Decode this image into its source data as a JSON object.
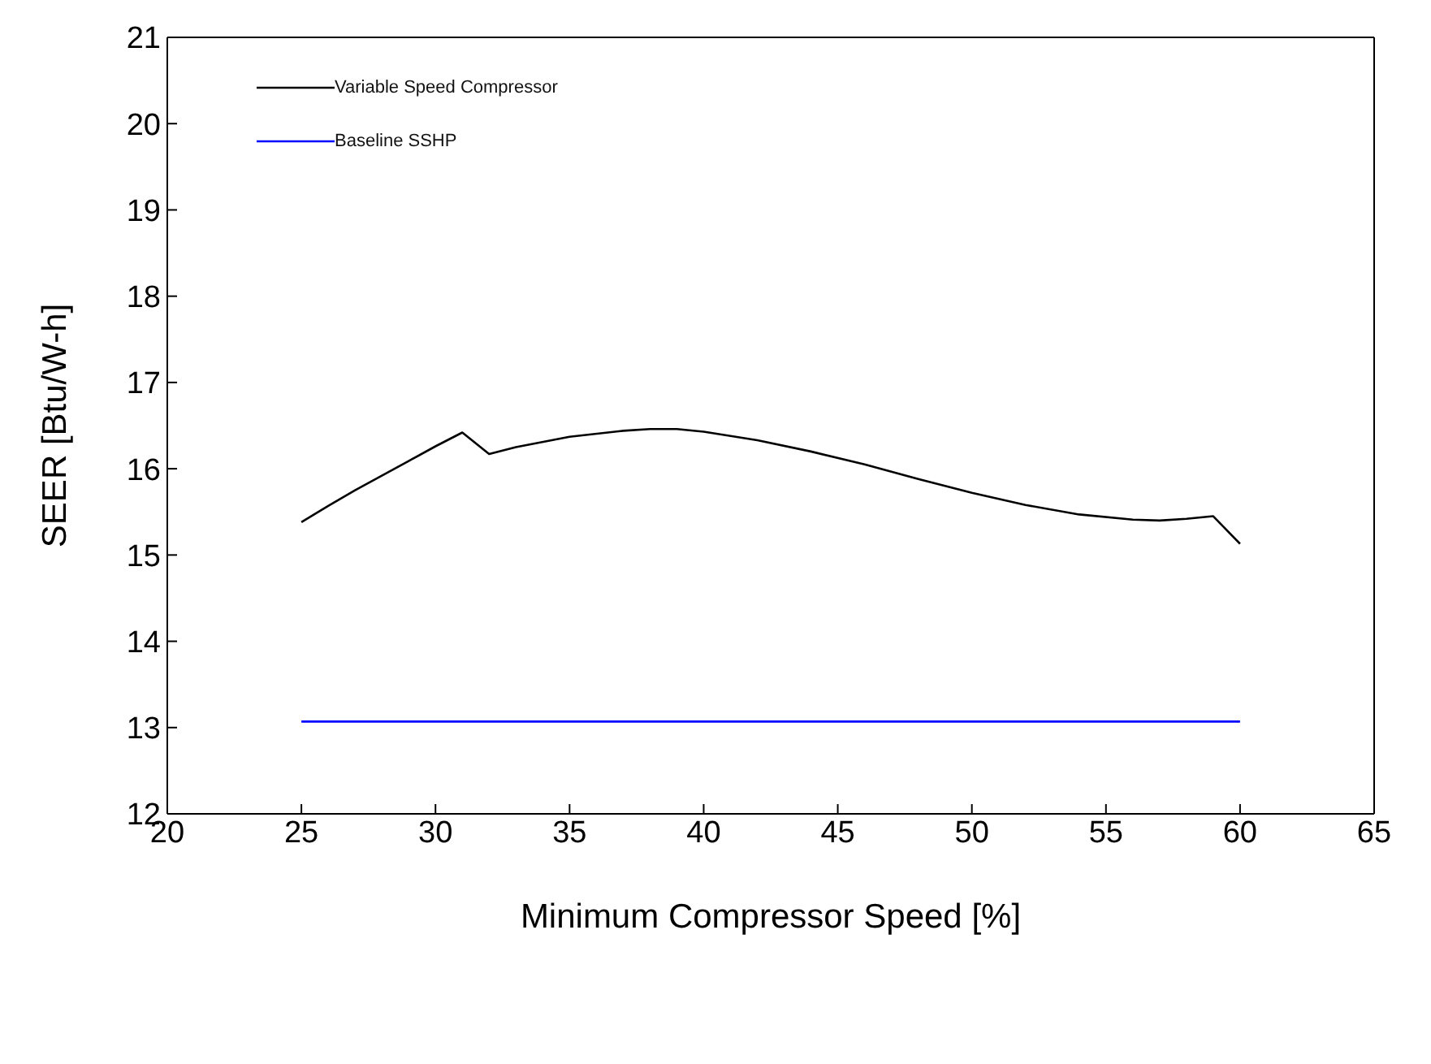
{
  "chart_data": {
    "type": "line",
    "xlabel": "Minimum Compressor Speed [%]",
    "ylabel": "SEER [Btu/W-h]",
    "xlim": [
      20,
      65
    ],
    "xticks": [
      20,
      25,
      30,
      35,
      40,
      45,
      50,
      55,
      60,
      65
    ],
    "ylim": [
      12,
      21
    ],
    "yticks": [
      12,
      13,
      14,
      15,
      16,
      17,
      18,
      19,
      20,
      21
    ],
    "grid": false,
    "legend": "top left",
    "marker": "none",
    "line_style": "solid",
    "series": [
      {
        "name": "Variable Speed Compressor",
        "color": "#000000",
        "x": [
          25,
          26,
          27,
          28,
          29,
          30,
          31,
          32,
          33,
          35,
          37,
          38,
          39,
          40,
          42,
          44,
          46,
          48,
          50,
          52,
          54,
          56,
          57,
          58,
          59,
          60
        ],
        "values": [
          15.38,
          15.57,
          15.75,
          15.92,
          16.09,
          16.26,
          16.42,
          16.17,
          16.25,
          16.37,
          16.44,
          16.46,
          16.46,
          16.43,
          16.33,
          16.2,
          16.05,
          15.88,
          15.72,
          15.58,
          15.47,
          15.41,
          15.4,
          15.42,
          15.45,
          15.13
        ]
      },
      {
        "name": "Baseline SSHP",
        "color": "#0000ff",
        "x": [
          25,
          60
        ],
        "values": [
          13.07,
          13.07
        ]
      }
    ]
  }
}
